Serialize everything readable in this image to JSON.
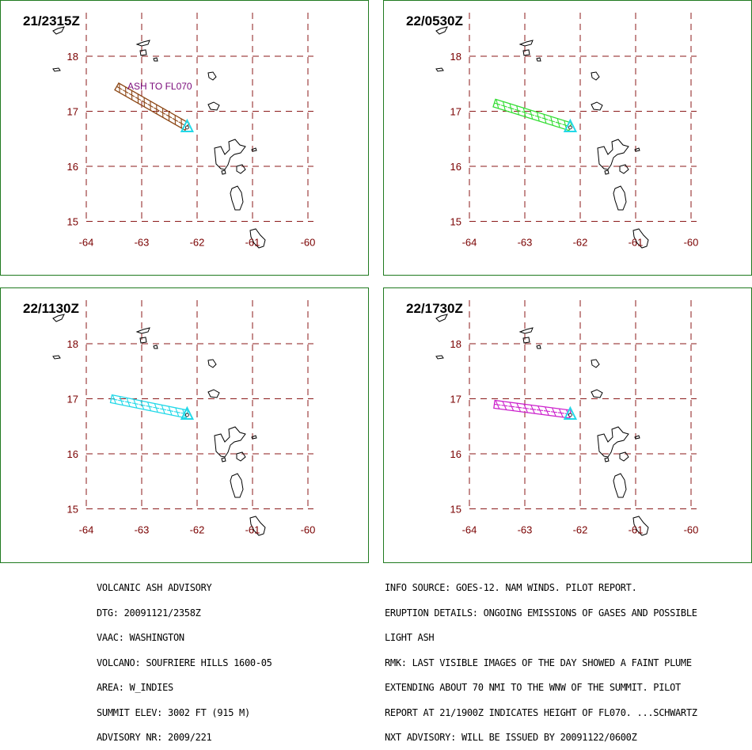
{
  "panels": [
    {
      "time": "21/2315Z",
      "plume_color": "#8b4513",
      "annotation": "ASH TO FL070",
      "plume_start": [
        -63.45,
        17.45
      ]
    },
    {
      "time": "22/0530Z",
      "plume_color": "#33dd33",
      "annotation": "",
      "plume_start": [
        -63.55,
        17.15
      ]
    },
    {
      "time": "22/1130Z",
      "plume_color": "#22d8e8",
      "annotation": "",
      "plume_start": [
        -63.55,
        17.0
      ]
    },
    {
      "time": "22/1730Z",
      "plume_color": "#cc22cc",
      "annotation": "",
      "plume_start": [
        -63.55,
        16.9
      ]
    }
  ],
  "axes": {
    "lon_ticks": [
      "-64",
      "-63",
      "-62",
      "-61",
      "-60"
    ],
    "lat_ticks": [
      "18",
      "17",
      "16",
      "15"
    ],
    "lon_range": [
      -64,
      -60
    ],
    "lat_range": [
      15,
      18.5
    ]
  },
  "volcano_position": [
    -62.18,
    16.72
  ],
  "colors": {
    "grid": "#8b1a1a",
    "label": "#7a0000",
    "border": "#1f7a1f",
    "volcano_marker": "#22d8e8"
  },
  "advisory_left": [
    "VOLCANIC ASH ADVISORY",
    "DTG: 20091121/2358Z",
    "VAAC: WASHINGTON",
    "VOLCANO: SOUFRIERE HILLS 1600-05",
    "AREA: W_INDIES",
    "SUMMIT ELEV: 3002 FT (915 M)",
    "ADVISORY NR: 2009/221"
  ],
  "advisory_right": [
    "INFO SOURCE: GOES-12. NAM WINDS. PILOT REPORT.",
    "ERUPTION DETAILS: ONGOING EMISSIONS OF GASES AND POSSIBLE",
    "LIGHT ASH",
    "RMK: LAST VISIBLE IMAGES OF THE DAY SHOWED A FAINT PLUME",
    "EXTENDING ABOUT 70 NMI TO THE WNW OF THE SUMMIT. PILOT",
    "REPORT AT 21/1900Z INDICATES HEIGHT OF FL070. ...SCHWARTZ",
    "NXT ADVISORY: WILL BE ISSUED BY 20091122/0600Z"
  ]
}
